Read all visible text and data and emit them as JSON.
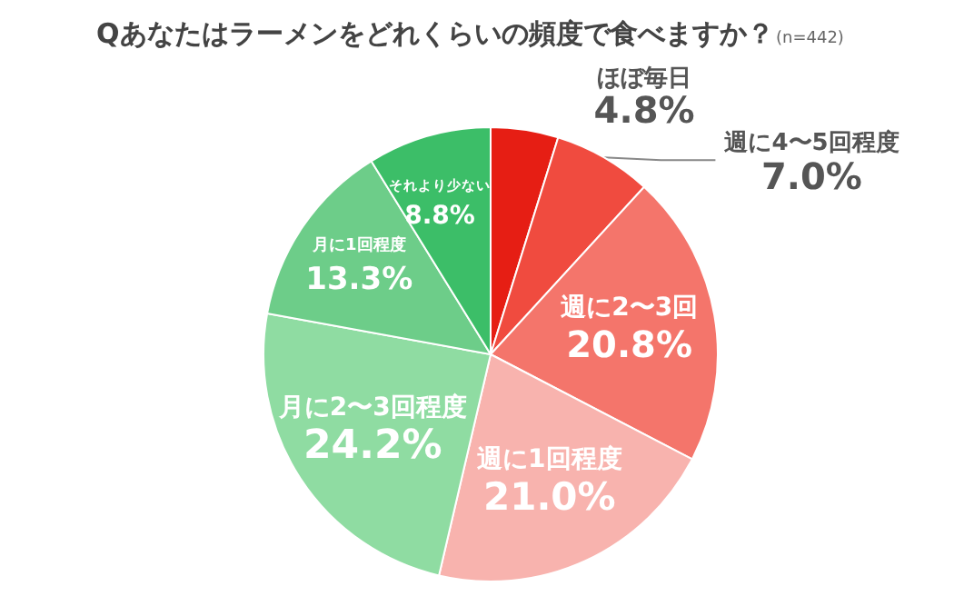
{
  "chart_data": {
    "type": "pie",
    "title": "Qあなたはラーメンをどれくらいの頻度で食べますか？",
    "subtitle": "(n=442)",
    "categories": [
      "ほぼ毎日",
      "週に4〜5回程度",
      "週に2〜3回",
      "週に1回程度",
      "月に2〜3回程度",
      "月に1回程度",
      "それより少ない"
    ],
    "values": [
      4.8,
      7.0,
      20.8,
      21.0,
      24.2,
      13.3,
      8.8
    ],
    "value_labels": [
      "4.8%",
      "7.0%",
      "20.8%",
      "21.0%",
      "24.2%",
      "13.3%",
      "8.8%"
    ],
    "colors": [
      "#e61e14",
      "#f04b3f",
      "#f4756b",
      "#f8b3ae",
      "#8fdca2",
      "#6dcd89",
      "#3cbe68"
    ],
    "legend": false
  }
}
